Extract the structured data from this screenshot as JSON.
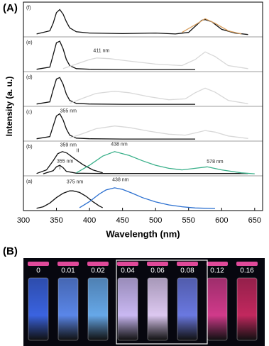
{
  "figure": {
    "label_a": "(A)",
    "label_b": "(B)"
  },
  "chart_data": [
    {
      "type": "line",
      "title": "(a)",
      "xlabel": "Wavelength (nm)",
      "ylabel": "Intensity (a. u.)",
      "xlim": [
        300,
        662
      ],
      "ylim": [
        0,
        1
      ],
      "xticks": [
        300,
        350,
        400,
        450,
        500,
        550,
        600,
        650
      ],
      "annotations": [
        "375 nm",
        "438 nm"
      ],
      "series": [
        {
          "color": "#111111",
          "x": [
            320,
            330,
            340,
            350,
            360,
            370,
            375,
            385,
            395,
            405,
            415,
            420
          ],
          "values": [
            0.03,
            0.08,
            0.2,
            0.38,
            0.52,
            0.6,
            0.6,
            0.55,
            0.42,
            0.25,
            0.1,
            0.05
          ]
        },
        {
          "color": "#2a6fd0",
          "x": [
            385,
            400,
            415,
            425,
            438,
            450,
            465,
            480,
            500,
            520,
            540,
            560,
            590
          ],
          "values": [
            0.05,
            0.25,
            0.5,
            0.63,
            0.7,
            0.65,
            0.52,
            0.38,
            0.24,
            0.14,
            0.08,
            0.04,
            0.02
          ]
        }
      ]
    },
    {
      "type": "line",
      "title": "(b)",
      "xlim": [
        300,
        662
      ],
      "ylim": [
        0,
        1
      ],
      "annotations": [
        "359 nm",
        "II",
        "438 nm",
        "355 nm",
        "I",
        "578 nm"
      ],
      "series": [
        {
          "color": "#111111",
          "x": [
            320,
            335,
            345,
            352,
            359,
            366,
            375,
            390,
            405,
            420
          ],
          "values": [
            0.03,
            0.15,
            0.45,
            0.68,
            0.75,
            0.7,
            0.55,
            0.32,
            0.15,
            0.05
          ]
        },
        {
          "color": "#111111",
          "x": [
            330,
            345,
            350,
            355,
            360,
            365,
            380,
            420,
            480,
            560,
            600,
            640
          ],
          "values": [
            0.02,
            0.12,
            0.25,
            0.3,
            0.22,
            0.1,
            0.04,
            0.03,
            0.03,
            0.03,
            0.03,
            0.03
          ]
        },
        {
          "color": "#3ab08a",
          "x": [
            380,
            400,
            420,
            438,
            460,
            480,
            500,
            520,
            540,
            560,
            578,
            600,
            630,
            650
          ],
          "values": [
            0.05,
            0.3,
            0.6,
            0.75,
            0.62,
            0.45,
            0.3,
            0.2,
            0.15,
            0.2,
            0.25,
            0.15,
            0.05,
            0.02
          ]
        }
      ]
    },
    {
      "type": "line",
      "title": "(c)",
      "xlim": [
        300,
        662
      ],
      "ylim": [
        0,
        1
      ],
      "annotations": [
        "355 nm"
      ],
      "series": [
        {
          "color": "#111111",
          "x": [
            320,
            340,
            345,
            350,
            355,
            360,
            365,
            370,
            380,
            400,
            450,
            500,
            560
          ],
          "values": [
            0.03,
            0.1,
            0.45,
            0.78,
            0.85,
            0.65,
            0.35,
            0.15,
            0.05,
            0.03,
            0.02,
            0.02,
            0.02
          ]
        },
        {
          "color": "#d8d8d8",
          "x": [
            370,
            390,
            410,
            438,
            460,
            490,
            520,
            545,
            560,
            575,
            590,
            610,
            640
          ],
          "values": [
            0.05,
            0.2,
            0.36,
            0.45,
            0.4,
            0.28,
            0.18,
            0.15,
            0.22,
            0.3,
            0.25,
            0.12,
            0.04
          ]
        }
      ]
    },
    {
      "type": "line",
      "title": "(d)",
      "xlim": [
        300,
        662
      ],
      "ylim": [
        0,
        1
      ],
      "annotations": [],
      "series": [
        {
          "color": "#111111",
          "x": [
            320,
            340,
            345,
            350,
            355,
            360,
            365,
            370,
            380,
            400,
            450,
            500,
            560
          ],
          "values": [
            0.03,
            0.1,
            0.5,
            0.85,
            0.9,
            0.68,
            0.35,
            0.15,
            0.05,
            0.03,
            0.02,
            0.02,
            0.02
          ]
        },
        {
          "color": "#d8d8d8",
          "x": [
            370,
            390,
            410,
            438,
            460,
            490,
            520,
            545,
            560,
            575,
            590,
            610,
            640
          ],
          "values": [
            0.05,
            0.22,
            0.38,
            0.45,
            0.4,
            0.27,
            0.17,
            0.2,
            0.4,
            0.55,
            0.42,
            0.15,
            0.04
          ]
        }
      ]
    },
    {
      "type": "line",
      "title": "(e)",
      "xlim": [
        300,
        662
      ],
      "ylim": [
        0,
        1
      ],
      "annotations": [
        "411 nm"
      ],
      "series": [
        {
          "color": "#111111",
          "x": [
            320,
            340,
            345,
            350,
            355,
            360,
            365,
            370,
            380,
            400,
            450,
            500,
            560
          ],
          "values": [
            0.03,
            0.1,
            0.5,
            0.9,
            0.95,
            0.7,
            0.35,
            0.15,
            0.05,
            0.03,
            0.02,
            0.02,
            0.02
          ]
        },
        {
          "color": "#d8d8d8",
          "x": [
            360,
            380,
            400,
            411,
            430,
            460,
            500,
            540,
            560,
            575,
            590,
            610,
            640
          ],
          "values": [
            0.05,
            0.2,
            0.35,
            0.4,
            0.38,
            0.3,
            0.2,
            0.15,
            0.35,
            0.6,
            0.45,
            0.15,
            0.05
          ]
        }
      ]
    },
    {
      "type": "line",
      "title": "(f)",
      "xlim": [
        300,
        662
      ],
      "ylim": [
        0,
        1
      ],
      "annotations": [],
      "series": [
        {
          "color": "#111111",
          "x": [
            320,
            340,
            345,
            350,
            355,
            360,
            365,
            370,
            380,
            400,
            450,
            500,
            530,
            550,
            560,
            570,
            575,
            585,
            600,
            620,
            640
          ],
          "values": [
            0.05,
            0.15,
            0.4,
            0.75,
            0.85,
            0.7,
            0.45,
            0.25,
            0.12,
            0.08,
            0.06,
            0.08,
            0.05,
            0.1,
            0.3,
            0.5,
            0.52,
            0.45,
            0.2,
            0.08,
            0.03
          ]
        },
        {
          "color": "#d9a060",
          "x": [
            540,
            560,
            575,
            590,
            610,
            630
          ],
          "values": [
            0.1,
            0.35,
            0.55,
            0.4,
            0.15,
            0.05
          ]
        }
      ]
    }
  ],
  "photo": {
    "samples": [
      "0",
      "0.01",
      "0.02",
      "0.04",
      "0.06",
      "0.08",
      "0.12",
      "0.16"
    ]
  }
}
